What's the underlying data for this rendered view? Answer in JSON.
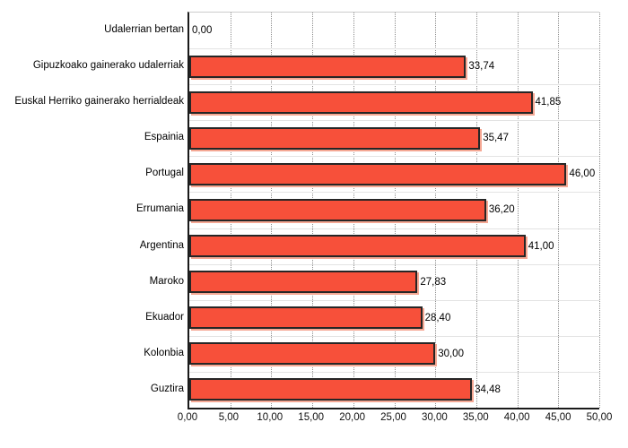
{
  "chart_data": {
    "type": "bar",
    "orientation": "horizontal",
    "title": "",
    "xlabel": "",
    "ylabel": "",
    "categories": [
      "Udalerrian bertan",
      "Gipuzkoako gainerako udalerriak",
      "Euskal Herriko gainerako herrialdeak",
      "Espainia",
      "Portugal",
      "Errumania",
      "Argentina",
      "Maroko",
      "Ekuador",
      "Kolonbia",
      "Guztira"
    ],
    "values": [
      0.0,
      33.74,
      41.85,
      35.47,
      46.0,
      36.2,
      41.0,
      27.83,
      28.4,
      30.0,
      34.48
    ],
    "value_labels": [
      "0,00",
      "33,74",
      "41,85",
      "35,47",
      "46,00",
      "36,20",
      "41,00",
      "27,83",
      "28,40",
      "30,00",
      "34,48"
    ],
    "x_ticks": [
      "0,00",
      "5,00",
      "10,00",
      "15,00",
      "20,00",
      "25,00",
      "30,00",
      "35,00",
      "40,00",
      "45,00",
      "50,00"
    ],
    "xlim": [
      0,
      50
    ],
    "grid": "vertical-dotted",
    "legend": "none",
    "colors": {
      "bar_fill": "#f7503a",
      "bar_border": "#262626",
      "bar_shadow": "#f5a894",
      "axis": "#1a1a1a",
      "gridline": "#8f8f8f",
      "row_separator": "#e3e3e3",
      "text": "#000000",
      "background": "#ffffff"
    }
  }
}
